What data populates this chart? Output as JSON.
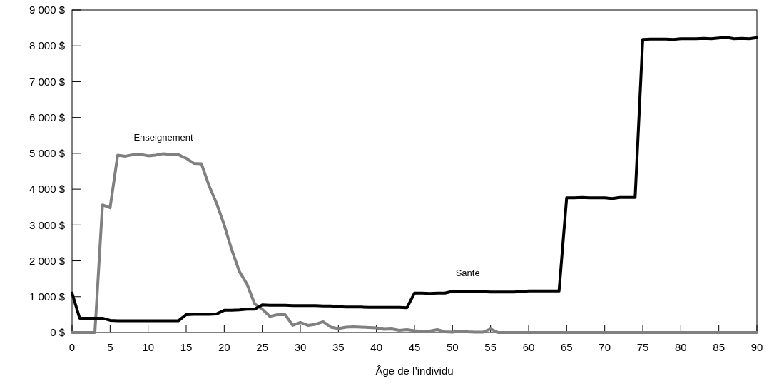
{
  "chart_data": {
    "type": "line",
    "xlabel": "Âge de l’individu",
    "x": [
      0,
      1,
      2,
      3,
      4,
      5,
      6,
      7,
      8,
      9,
      10,
      11,
      12,
      13,
      14,
      15,
      16,
      17,
      18,
      19,
      20,
      21,
      22,
      23,
      24,
      25,
      26,
      27,
      28,
      29,
      30,
      31,
      32,
      33,
      34,
      35,
      36,
      37,
      38,
      39,
      40,
      41,
      42,
      43,
      44,
      45,
      46,
      47,
      48,
      49,
      50,
      51,
      52,
      53,
      54,
      55,
      56,
      57,
      58,
      59,
      60,
      61,
      62,
      63,
      64,
      65,
      66,
      67,
      68,
      69,
      70,
      71,
      72,
      73,
      74,
      75,
      76,
      77,
      78,
      79,
      80,
      81,
      82,
      83,
      84,
      85,
      86,
      87,
      88,
      89,
      90
    ],
    "series": [
      {
        "name": "Enseignement",
        "color": "#808080",
        "values": [
          0,
          0,
          0,
          0,
          3560,
          3480,
          4950,
          4920,
          4960,
          4970,
          4930,
          4950,
          4990,
          4970,
          4960,
          4860,
          4720,
          4710,
          4100,
          3600,
          3000,
          2300,
          1700,
          1350,
          800,
          650,
          450,
          500,
          500,
          200,
          280,
          200,
          230,
          300,
          150,
          110,
          150,
          160,
          150,
          140,
          130,
          90,
          100,
          60,
          80,
          50,
          30,
          40,
          80,
          20,
          10,
          40,
          20,
          10,
          10,
          100,
          0,
          0,
          0,
          0,
          0,
          0,
          0,
          0,
          0,
          0,
          0,
          0,
          0,
          0,
          0,
          0,
          0,
          0,
          0,
          0,
          0,
          0,
          0,
          0,
          0,
          0,
          0,
          0,
          0,
          0,
          0,
          0,
          0,
          0,
          0
        ]
      },
      {
        "name": "Santé",
        "color": "#000000",
        "values": [
          1100,
          400,
          400,
          400,
          400,
          340,
          330,
          330,
          330,
          330,
          330,
          330,
          330,
          330,
          330,
          500,
          510,
          510,
          510,
          520,
          620,
          620,
          630,
          650,
          650,
          770,
          760,
          760,
          760,
          750,
          750,
          750,
          750,
          740,
          740,
          720,
          710,
          710,
          710,
          700,
          700,
          700,
          700,
          700,
          690,
          1100,
          1100,
          1090,
          1100,
          1100,
          1150,
          1150,
          1140,
          1140,
          1140,
          1130,
          1130,
          1130,
          1130,
          1140,
          1160,
          1160,
          1160,
          1160,
          1160,
          3760,
          3760,
          3770,
          3760,
          3760,
          3760,
          3740,
          3770,
          3770,
          3770,
          8180,
          8190,
          8190,
          8190,
          8180,
          8200,
          8200,
          8200,
          8210,
          8200,
          8220,
          8240,
          8200,
          8210,
          8200,
          8230
        ]
      }
    ],
    "xlim": [
      0,
      90
    ],
    "xticks": [
      0,
      5,
      10,
      15,
      20,
      25,
      30,
      35,
      40,
      45,
      50,
      55,
      60,
      65,
      70,
      75,
      80,
      85,
      90
    ],
    "ylim": [
      0,
      9000
    ],
    "yticks": [
      {
        "value": 0,
        "label": "0 $"
      },
      {
        "value": 1000,
        "label": "1 000 $"
      },
      {
        "value": 2000,
        "label": "2 000 $"
      },
      {
        "value": 3000,
        "label": "3 000 $"
      },
      {
        "value": 4000,
        "label": "4 000 $"
      },
      {
        "value": 5000,
        "label": "5 000 $"
      },
      {
        "value": 6000,
        "label": "6 000 $"
      },
      {
        "value": 7000,
        "label": "7 000 $"
      },
      {
        "value": 8000,
        "label": "8 000 $"
      },
      {
        "value": 9000,
        "label": "9 000 $"
      }
    ],
    "grid": false,
    "legend": false,
    "marker": "none",
    "line_style": "solid"
  }
}
